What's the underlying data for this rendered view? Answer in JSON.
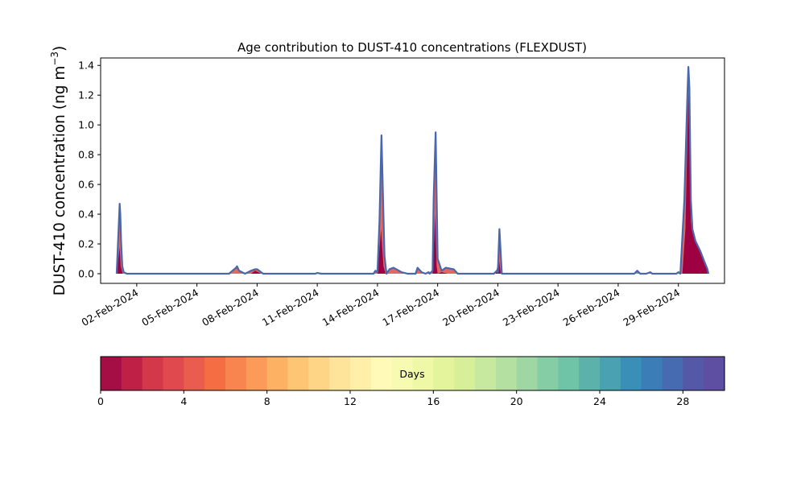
{
  "chart_data": {
    "type": "area",
    "title": "Age contribution to DUST-410 concentrations (FLEXDUST)",
    "ylabel_main": "DUST-410 concentration (ng m",
    "ylabel_sup": "−3",
    "ylabel_close": ")",
    "xlabel": "",
    "ylim": [
      -0.065,
      1.45
    ],
    "yticks": [
      0.0,
      0.2,
      0.4,
      0.6,
      0.8,
      1.0,
      1.2,
      1.4
    ],
    "ytick_labels": [
      "0.0",
      "0.2",
      "0.4",
      "0.6",
      "0.8",
      "1.0",
      "1.2",
      "1.4"
    ],
    "xlim_days": [
      -0.8,
      30.3
    ],
    "xticks_days": [
      1,
      4,
      7,
      10,
      13,
      16,
      19,
      22,
      25,
      28
    ],
    "xtick_labels": [
      "02-Feb-2024",
      "05-Feb-2024",
      "08-Feb-2024",
      "11-Feb-2024",
      "14-Feb-2024",
      "17-Feb-2024",
      "20-Feb-2024",
      "23-Feb-2024",
      "26-Feb-2024",
      "29-Feb-2024"
    ],
    "time_axis_note": "day index 0 = 01-Feb-2024",
    "series_total": {
      "color": "#4a67ad",
      "x_days": [
        0.0,
        0.15,
        0.18,
        0.22,
        0.28,
        0.35,
        0.5,
        1.0,
        2.0,
        4.0,
        5.6,
        5.95,
        6.0,
        6.1,
        6.4,
        6.7,
        6.9,
        7.0,
        7.3,
        8.0,
        9.0,
        9.9,
        10.0,
        10.2,
        12.0,
        12.8,
        12.9,
        13.0,
        13.1,
        13.2,
        13.35,
        13.45,
        13.6,
        13.8,
        14.2,
        14.5,
        14.9,
        15.0,
        15.2,
        15.4,
        15.55,
        15.6,
        15.75,
        15.8,
        15.9,
        16.0,
        16.2,
        16.4,
        16.8,
        17.0,
        17.8,
        18.8,
        18.95,
        19.0,
        19.08,
        19.2,
        20.0,
        25.0,
        25.8,
        25.95,
        26.1,
        26.4,
        26.6,
        26.7,
        26.8,
        27.5,
        27.9,
        28.0,
        28.1,
        28.3,
        28.45,
        28.5,
        28.55,
        28.62,
        28.7,
        28.85,
        29.1,
        29.3,
        29.45,
        29.5
      ],
      "y": [
        0.0,
        0.47,
        0.4,
        0.22,
        0.05,
        0.01,
        0.0,
        0.0,
        0.0,
        0.0,
        0.0,
        0.04,
        0.05,
        0.02,
        0.0,
        0.02,
        0.03,
        0.03,
        0.0,
        0.0,
        0.0,
        0.0,
        0.005,
        0.0,
        0.0,
        0.0,
        0.02,
        0.01,
        0.35,
        0.93,
        0.12,
        0.0,
        0.03,
        0.04,
        0.01,
        0.0,
        0.0,
        0.04,
        0.01,
        0.0,
        0.01,
        0.0,
        0.02,
        0.5,
        0.95,
        0.1,
        0.02,
        0.04,
        0.03,
        0.0,
        0.0,
        0.0,
        0.02,
        0.01,
        0.3,
        0.0,
        0.0,
        0.0,
        0.0,
        0.02,
        0.0,
        0.0,
        0.01,
        0.0,
        0.0,
        0.0,
        0.0,
        0.01,
        0.0,
        0.5,
        1.2,
        1.39,
        1.25,
        0.5,
        0.3,
        0.22,
        0.15,
        0.08,
        0.03,
        0.0
      ]
    },
    "series_recent": {
      "color": "#9e0142",
      "x_days": [
        0.0,
        0.15,
        0.2,
        0.3,
        0.5,
        6.7,
        6.9,
        7.2,
        13.0,
        13.18,
        13.3,
        13.4,
        15.75,
        15.88,
        15.95,
        16.0,
        16.2,
        16.5,
        18.9,
        19.05,
        19.15,
        28.2,
        28.35,
        28.5,
        28.55,
        28.62,
        28.7,
        28.85,
        29.1,
        29.3,
        29.45,
        29.5
      ],
      "y": [
        0.0,
        0.18,
        0.05,
        0.0,
        0.0,
        0.0,
        0.02,
        0.0,
        0.0,
        0.3,
        0.05,
        0.0,
        0.0,
        0.4,
        0.05,
        0.0,
        0.01,
        0.0,
        0.0,
        0.1,
        0.0,
        0.0,
        0.3,
        1.22,
        0.9,
        0.35,
        0.28,
        0.22,
        0.14,
        0.08,
        0.03,
        0.0
      ]
    },
    "colorbar": {
      "label": "Days",
      "range": [
        0,
        30
      ],
      "n_bins": 30,
      "tick_values": [
        0,
        4,
        8,
        12,
        16,
        20,
        24,
        28
      ],
      "tick_labels": [
        "0",
        "4",
        "8",
        "12",
        "16",
        "20",
        "24",
        "28"
      ],
      "colors": [
        "#a50d45",
        "#bf2146",
        "#d3374a",
        "#e04a4e",
        "#ea5c4d",
        "#f46d43",
        "#f88450",
        "#fb9a59",
        "#fdb162",
        "#fec574",
        "#fed587",
        "#fee39b",
        "#ffefa8",
        "#fffab8",
        "#f7fbb1",
        "#eff8a6",
        "#e4f49d",
        "#d8ef9a",
        "#c7e99f",
        "#b4e0a2",
        "#9ed7a4",
        "#85cda5",
        "#6fc3a7",
        "#5cb2ab",
        "#4aa1b1",
        "#398fb7",
        "#3b7db6",
        "#476bb0",
        "#5558a7",
        "#5e4fa2"
      ]
    }
  }
}
